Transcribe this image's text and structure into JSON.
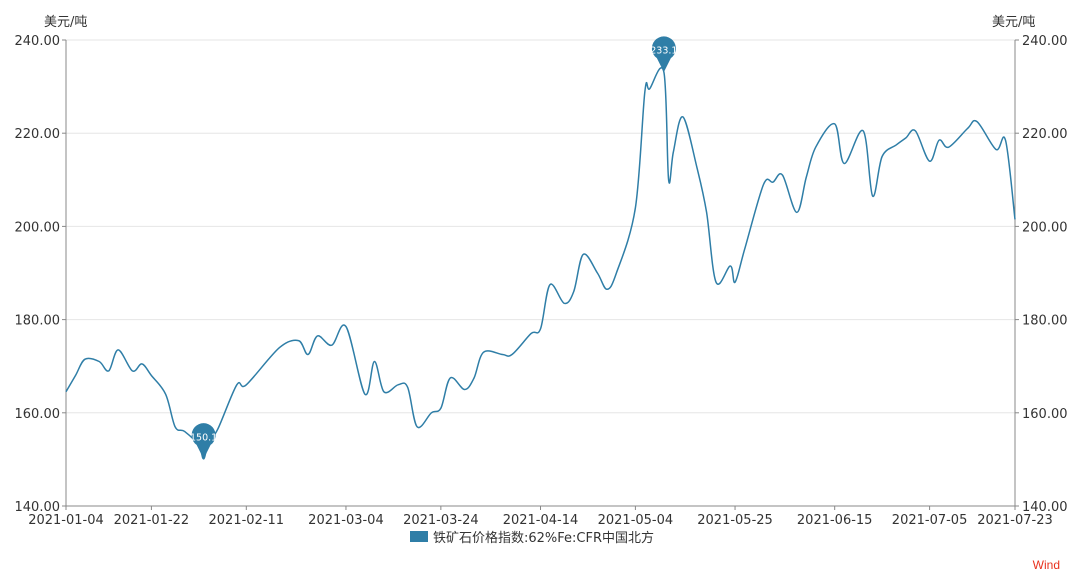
{
  "chart_data": {
    "type": "line",
    "y_unit_left": "美元/吨",
    "y_unit_right": "美元/吨",
    "ylim": [
      140,
      240
    ],
    "y_ticks": [
      "140.00",
      "160.00",
      "180.00",
      "200.00",
      "220.00",
      "240.00"
    ],
    "x_ticks": [
      "2021-01-04",
      "2021-01-22",
      "2021-02-11",
      "2021-03-04",
      "2021-03-24",
      "2021-04-14",
      "2021-05-04",
      "2021-05-25",
      "2021-06-15",
      "2021-07-05",
      "2021-07-23"
    ],
    "series": [
      {
        "name": "铁矿石价格指数:62%Fe:CFR中国北方",
        "color": "#2f7ea7",
        "x": [
          "2021-01-04",
          "2021-01-06",
          "2021-01-08",
          "2021-01-11",
          "2021-01-13",
          "2021-01-15",
          "2021-01-18",
          "2021-01-20",
          "2021-01-22",
          "2021-01-25",
          "2021-01-27",
          "2021-01-29",
          "2021-02-01",
          "2021-02-02",
          "2021-02-03",
          "2021-02-05",
          "2021-02-09",
          "2021-02-11",
          "2021-02-18",
          "2021-02-22",
          "2021-02-24",
          "2021-02-26",
          "2021-03-01",
          "2021-03-04",
          "2021-03-08",
          "2021-03-10",
          "2021-03-12",
          "2021-03-15",
          "2021-03-17",
          "2021-03-19",
          "2021-03-22",
          "2021-03-24",
          "2021-03-26",
          "2021-03-29",
          "2021-03-31",
          "2021-04-02",
          "2021-04-06",
          "2021-04-08",
          "2021-04-12",
          "2021-04-14",
          "2021-04-16",
          "2021-04-19",
          "2021-04-21",
          "2021-04-23",
          "2021-04-26",
          "2021-04-28",
          "2021-04-30",
          "2021-05-04",
          "2021-05-06",
          "2021-05-07",
          "2021-05-10",
          "2021-05-11",
          "2021-05-12",
          "2021-05-14",
          "2021-05-17",
          "2021-05-19",
          "2021-05-21",
          "2021-05-24",
          "2021-05-25",
          "2021-05-27",
          "2021-05-31",
          "2021-06-02",
          "2021-06-04",
          "2021-06-07",
          "2021-06-09",
          "2021-06-11",
          "2021-06-15",
          "2021-06-17",
          "2021-06-21",
          "2021-06-23",
          "2021-06-25",
          "2021-06-28",
          "2021-06-30",
          "2021-07-02",
          "2021-07-05",
          "2021-07-07",
          "2021-07-09",
          "2021-07-13",
          "2021-07-15",
          "2021-07-19",
          "2021-07-21",
          "2021-07-23"
        ],
        "values": [
          164.5,
          168.0,
          171.5,
          171.0,
          169.0,
          173.5,
          169.0,
          170.5,
          168.0,
          164.0,
          157.0,
          156.0,
          153.0,
          150.1,
          153.5,
          156.5,
          166.0,
          166.0,
          174.0,
          175.5,
          172.5,
          176.5,
          174.5,
          178.5,
          164.0,
          171.0,
          164.5,
          166.0,
          165.5,
          157.0,
          160.0,
          161.0,
          167.5,
          165.0,
          167.5,
          173.0,
          172.5,
          172.5,
          177.0,
          178.0,
          187.5,
          183.5,
          186.0,
          194.0,
          190.0,
          186.5,
          190.0,
          204.0,
          229.0,
          229.5,
          233.1,
          210.0,
          216.0,
          223.5,
          212.5,
          203.0,
          188.0,
          191.5,
          188.0,
          195.0,
          209.0,
          209.5,
          211.0,
          203.0,
          210.5,
          217.0,
          222.0,
          213.5,
          220.5,
          206.5,
          215.0,
          217.5,
          219.0,
          220.5,
          214.0,
          218.5,
          217.0,
          221.0,
          222.5,
          216.5,
          218.5,
          201.5
        ]
      }
    ],
    "annotations": [
      {
        "x": "2021-05-10",
        "value": 233.1,
        "label": "233.1"
      },
      {
        "x": "2021-02-02",
        "value": 150.1,
        "label": "150.1"
      }
    ],
    "legend": "bottom-center",
    "grid": true,
    "watermark": {
      "text": "Wind",
      "color": "#e8321e"
    }
  }
}
